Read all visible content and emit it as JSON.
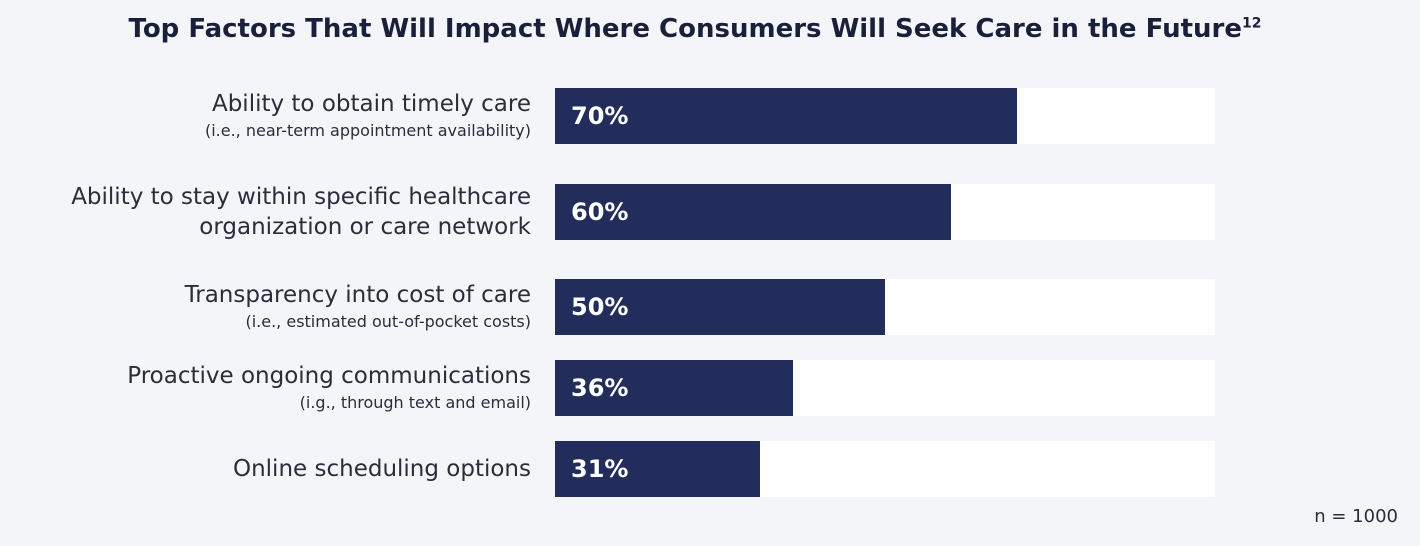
{
  "chart_data": {
    "type": "bar",
    "orientation": "horizontal",
    "title": "Top Factors That Will Impact Where Consumers Will Seek Care in the Future",
    "title_note": "12",
    "categories": [
      "Ability to obtain timely care",
      "Ability to stay within specific healthcare organization or care network",
      "Transparency into cost of care",
      "Proactive ongoing communications",
      "Online scheduling options"
    ],
    "category_notes": [
      "(i.e., near-term appointment availability)",
      null,
      "(i.e., estimated out-of-pocket costs)",
      "(i.g., through text and email)",
      null
    ],
    "values": [
      70,
      60,
      50,
      36,
      31
    ],
    "value_labels": [
      "70%",
      "60%",
      "50%",
      "36%",
      "31%"
    ],
    "color": "#232d5b",
    "track_color": "#ffffff",
    "xlim": [
      0,
      100
    ],
    "footnote": "n = 1000"
  }
}
